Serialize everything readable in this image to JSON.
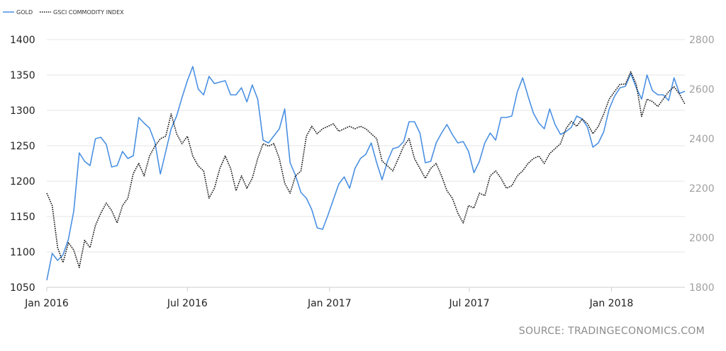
{
  "source": "SOURCE: TRADINGECONOMICS.COM",
  "chart_data": {
    "type": "line",
    "title": "",
    "legend_position": "top-left",
    "grid": true,
    "x_ticks": [
      "Jan 2016",
      "Jul 2016",
      "Jan 2017",
      "Jul 2017",
      "Jan 2018"
    ],
    "xlim": [
      "2016-01-01",
      "2018-04-06"
    ],
    "y_left": {
      "ticks": [
        "1050",
        "1100",
        "1150",
        "1200",
        "1250",
        "1300",
        "1350",
        "1400"
      ],
      "ylim": [
        1050,
        1400
      ]
    },
    "y_right": {
      "ticks": [
        "1800",
        "2000",
        "2200",
        "2400",
        "2600",
        "2800"
      ],
      "ylim": [
        1800,
        2800
      ]
    },
    "colors": {
      "gold": "#4a90e2",
      "gsci": "#111111",
      "grid": "#e6e6e6",
      "right_axis": "#a0a0a0"
    },
    "series": [
      {
        "name": "GOLD",
        "axis": "left",
        "style": "solid",
        "points": [
          [
            "2016-01-01",
            1060
          ],
          [
            "2016-01-08",
            1098
          ],
          [
            "2016-01-15",
            1088
          ],
          [
            "2016-01-22",
            1096
          ],
          [
            "2016-01-29",
            1118
          ],
          [
            "2016-02-05",
            1158
          ],
          [
            "2016-02-12",
            1240
          ],
          [
            "2016-02-19",
            1228
          ],
          [
            "2016-02-26",
            1222
          ],
          [
            "2016-03-04",
            1260
          ],
          [
            "2016-03-11",
            1262
          ],
          [
            "2016-03-18",
            1252
          ],
          [
            "2016-03-25",
            1220
          ],
          [
            "2016-04-01",
            1222
          ],
          [
            "2016-04-08",
            1242
          ],
          [
            "2016-04-15",
            1232
          ],
          [
            "2016-04-22",
            1236
          ],
          [
            "2016-04-29",
            1290
          ],
          [
            "2016-05-06",
            1282
          ],
          [
            "2016-05-13",
            1275
          ],
          [
            "2016-05-20",
            1255
          ],
          [
            "2016-05-27",
            1210
          ],
          [
            "2016-06-03",
            1242
          ],
          [
            "2016-06-10",
            1274
          ],
          [
            "2016-06-17",
            1292
          ],
          [
            "2016-06-24",
            1318
          ],
          [
            "2016-07-01",
            1342
          ],
          [
            "2016-07-08",
            1362
          ],
          [
            "2016-07-15",
            1330
          ],
          [
            "2016-07-22",
            1322
          ],
          [
            "2016-07-29",
            1348
          ],
          [
            "2016-08-05",
            1338
          ],
          [
            "2016-08-12",
            1340
          ],
          [
            "2016-08-19",
            1342
          ],
          [
            "2016-08-26",
            1322
          ],
          [
            "2016-09-02",
            1322
          ],
          [
            "2016-09-09",
            1332
          ],
          [
            "2016-09-16",
            1312
          ],
          [
            "2016-09-23",
            1336
          ],
          [
            "2016-09-30",
            1316
          ],
          [
            "2016-10-07",
            1258
          ],
          [
            "2016-10-14",
            1254
          ],
          [
            "2016-10-21",
            1264
          ],
          [
            "2016-10-28",
            1274
          ],
          [
            "2016-11-04",
            1302
          ],
          [
            "2016-11-11",
            1226
          ],
          [
            "2016-11-18",
            1208
          ],
          [
            "2016-11-25",
            1184
          ],
          [
            "2016-12-02",
            1176
          ],
          [
            "2016-12-09",
            1160
          ],
          [
            "2016-12-16",
            1134
          ],
          [
            "2016-12-23",
            1132
          ],
          [
            "2016-12-30",
            1152
          ],
          [
            "2017-01-06",
            1174
          ],
          [
            "2017-01-13",
            1196
          ],
          [
            "2017-01-20",
            1206
          ],
          [
            "2017-01-27",
            1190
          ],
          [
            "2017-02-03",
            1218
          ],
          [
            "2017-02-10",
            1232
          ],
          [
            "2017-02-17",
            1238
          ],
          [
            "2017-02-24",
            1254
          ],
          [
            "2017-03-03",
            1226
          ],
          [
            "2017-03-10",
            1202
          ],
          [
            "2017-03-17",
            1228
          ],
          [
            "2017-03-24",
            1246
          ],
          [
            "2017-03-31",
            1248
          ],
          [
            "2017-04-07",
            1256
          ],
          [
            "2017-04-14",
            1284
          ],
          [
            "2017-04-21",
            1284
          ],
          [
            "2017-04-28",
            1268
          ],
          [
            "2017-05-05",
            1226
          ],
          [
            "2017-05-12",
            1228
          ],
          [
            "2017-05-19",
            1254
          ],
          [
            "2017-05-26",
            1268
          ],
          [
            "2017-06-02",
            1280
          ],
          [
            "2017-06-09",
            1266
          ],
          [
            "2017-06-16",
            1254
          ],
          [
            "2017-06-23",
            1256
          ],
          [
            "2017-06-30",
            1242
          ],
          [
            "2017-07-07",
            1212
          ],
          [
            "2017-07-14",
            1228
          ],
          [
            "2017-07-21",
            1254
          ],
          [
            "2017-07-28",
            1268
          ],
          [
            "2017-08-04",
            1258
          ],
          [
            "2017-08-11",
            1290
          ],
          [
            "2017-08-18",
            1290
          ],
          [
            "2017-08-25",
            1292
          ],
          [
            "2017-09-01",
            1326
          ],
          [
            "2017-09-08",
            1346
          ],
          [
            "2017-09-15",
            1320
          ],
          [
            "2017-09-22",
            1296
          ],
          [
            "2017-09-29",
            1282
          ],
          [
            "2017-10-06",
            1274
          ],
          [
            "2017-10-13",
            1302
          ],
          [
            "2017-10-20",
            1280
          ],
          [
            "2017-10-27",
            1266
          ],
          [
            "2017-11-03",
            1270
          ],
          [
            "2017-11-10",
            1276
          ],
          [
            "2017-11-17",
            1292
          ],
          [
            "2017-11-24",
            1288
          ],
          [
            "2017-12-01",
            1276
          ],
          [
            "2017-12-08",
            1248
          ],
          [
            "2017-12-15",
            1254
          ],
          [
            "2017-12-22",
            1270
          ],
          [
            "2017-12-29",
            1302
          ],
          [
            "2018-01-05",
            1320
          ],
          [
            "2018-01-12",
            1332
          ],
          [
            "2018-01-19",
            1334
          ],
          [
            "2018-01-26",
            1352
          ],
          [
            "2018-02-02",
            1332
          ],
          [
            "2018-02-09",
            1316
          ],
          [
            "2018-02-16",
            1350
          ],
          [
            "2018-02-23",
            1328
          ],
          [
            "2018-03-02",
            1322
          ],
          [
            "2018-03-09",
            1322
          ],
          [
            "2018-03-16",
            1314
          ],
          [
            "2018-03-23",
            1346
          ],
          [
            "2018-03-30",
            1324
          ],
          [
            "2018-04-06",
            1327
          ]
        ]
      },
      {
        "name": "GSCI COMMODITY INDEX",
        "axis": "right",
        "style": "dotted",
        "points": [
          [
            "2016-01-01",
            2180
          ],
          [
            "2016-01-08",
            2130
          ],
          [
            "2016-01-15",
            1960
          ],
          [
            "2016-01-22",
            1900
          ],
          [
            "2016-01-29",
            1980
          ],
          [
            "2016-02-05",
            1950
          ],
          [
            "2016-02-12",
            1880
          ],
          [
            "2016-02-19",
            1990
          ],
          [
            "2016-02-26",
            1960
          ],
          [
            "2016-03-04",
            2050
          ],
          [
            "2016-03-11",
            2100
          ],
          [
            "2016-03-18",
            2140
          ],
          [
            "2016-03-25",
            2110
          ],
          [
            "2016-04-01",
            2060
          ],
          [
            "2016-04-08",
            2130
          ],
          [
            "2016-04-15",
            2160
          ],
          [
            "2016-04-22",
            2260
          ],
          [
            "2016-04-29",
            2300
          ],
          [
            "2016-05-06",
            2250
          ],
          [
            "2016-05-13",
            2330
          ],
          [
            "2016-05-20",
            2370
          ],
          [
            "2016-05-27",
            2400
          ],
          [
            "2016-06-03",
            2410
          ],
          [
            "2016-06-10",
            2500
          ],
          [
            "2016-06-17",
            2420
          ],
          [
            "2016-06-24",
            2380
          ],
          [
            "2016-07-01",
            2410
          ],
          [
            "2016-07-08",
            2330
          ],
          [
            "2016-07-15",
            2290
          ],
          [
            "2016-07-22",
            2270
          ],
          [
            "2016-07-29",
            2160
          ],
          [
            "2016-08-05",
            2200
          ],
          [
            "2016-08-12",
            2280
          ],
          [
            "2016-08-19",
            2330
          ],
          [
            "2016-08-26",
            2280
          ],
          [
            "2016-09-02",
            2190
          ],
          [
            "2016-09-09",
            2250
          ],
          [
            "2016-09-16",
            2200
          ],
          [
            "2016-09-23",
            2240
          ],
          [
            "2016-09-30",
            2320
          ],
          [
            "2016-10-07",
            2380
          ],
          [
            "2016-10-14",
            2370
          ],
          [
            "2016-10-21",
            2380
          ],
          [
            "2016-10-28",
            2320
          ],
          [
            "2016-11-04",
            2220
          ],
          [
            "2016-11-11",
            2180
          ],
          [
            "2016-11-18",
            2250
          ],
          [
            "2016-11-25",
            2270
          ],
          [
            "2016-12-02",
            2410
          ],
          [
            "2016-12-09",
            2450
          ],
          [
            "2016-12-16",
            2420
          ],
          [
            "2016-12-23",
            2440
          ],
          [
            "2016-12-30",
            2450
          ],
          [
            "2017-01-06",
            2460
          ],
          [
            "2017-01-13",
            2430
          ],
          [
            "2017-01-20",
            2440
          ],
          [
            "2017-01-27",
            2450
          ],
          [
            "2017-02-03",
            2440
          ],
          [
            "2017-02-10",
            2450
          ],
          [
            "2017-02-17",
            2440
          ],
          [
            "2017-02-24",
            2420
          ],
          [
            "2017-03-03",
            2400
          ],
          [
            "2017-03-10",
            2310
          ],
          [
            "2017-03-17",
            2290
          ],
          [
            "2017-03-24",
            2270
          ],
          [
            "2017-03-31",
            2320
          ],
          [
            "2017-04-07",
            2370
          ],
          [
            "2017-04-14",
            2400
          ],
          [
            "2017-04-21",
            2320
          ],
          [
            "2017-04-28",
            2280
          ],
          [
            "2017-05-05",
            2240
          ],
          [
            "2017-05-12",
            2280
          ],
          [
            "2017-05-19",
            2300
          ],
          [
            "2017-05-26",
            2250
          ],
          [
            "2017-06-02",
            2190
          ],
          [
            "2017-06-09",
            2160
          ],
          [
            "2017-06-16",
            2100
          ],
          [
            "2017-06-23",
            2060
          ],
          [
            "2017-06-30",
            2130
          ],
          [
            "2017-07-07",
            2120
          ],
          [
            "2017-07-14",
            2180
          ],
          [
            "2017-07-21",
            2170
          ],
          [
            "2017-07-28",
            2250
          ],
          [
            "2017-08-04",
            2270
          ],
          [
            "2017-08-11",
            2240
          ],
          [
            "2017-08-18",
            2200
          ],
          [
            "2017-08-25",
            2210
          ],
          [
            "2017-09-01",
            2250
          ],
          [
            "2017-09-08",
            2270
          ],
          [
            "2017-09-15",
            2300
          ],
          [
            "2017-09-22",
            2320
          ],
          [
            "2017-09-29",
            2330
          ],
          [
            "2017-10-06",
            2300
          ],
          [
            "2017-10-13",
            2340
          ],
          [
            "2017-10-20",
            2360
          ],
          [
            "2017-10-27",
            2380
          ],
          [
            "2017-11-03",
            2440
          ],
          [
            "2017-11-10",
            2470
          ],
          [
            "2017-11-17",
            2450
          ],
          [
            "2017-11-24",
            2480
          ],
          [
            "2017-12-01",
            2460
          ],
          [
            "2017-12-08",
            2420
          ],
          [
            "2017-12-15",
            2450
          ],
          [
            "2017-12-22",
            2500
          ],
          [
            "2017-12-29",
            2560
          ],
          [
            "2018-01-05",
            2590
          ],
          [
            "2018-01-12",
            2620
          ],
          [
            "2018-01-19",
            2620
          ],
          [
            "2018-01-26",
            2670
          ],
          [
            "2018-02-02",
            2620
          ],
          [
            "2018-02-09",
            2490
          ],
          [
            "2018-02-16",
            2560
          ],
          [
            "2018-02-23",
            2550
          ],
          [
            "2018-03-02",
            2530
          ],
          [
            "2018-03-09",
            2560
          ],
          [
            "2018-03-16",
            2590
          ],
          [
            "2018-03-23",
            2610
          ],
          [
            "2018-03-30",
            2580
          ],
          [
            "2018-04-06",
            2540
          ]
        ]
      }
    ]
  }
}
